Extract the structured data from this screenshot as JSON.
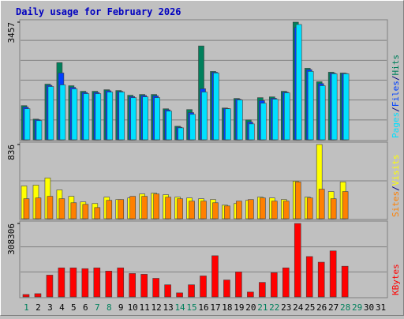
{
  "chart_data": [
    {
      "type": "bar",
      "title": "Daily usage for February 2026",
      "legend_separator": "/",
      "ylim": [
        0,
        3457
      ],
      "yticks": [
        3457
      ],
      "grid": true,
      "series": [
        {
          "name": "Hits",
          "color": "#00805c",
          "values": [
            1004,
            608,
            1635,
            2266,
            1588,
            1425,
            1425,
            1471,
            1448,
            1308,
            1332,
            1332,
            911,
            397,
            888,
            2757,
            2009,
            934,
            1215,
            584,
            1238,
            1261,
            1425,
            3457,
            2102,
            1705,
            1986,
            1962,
            null,
            null,
            null
          ]
        },
        {
          "name": "Files",
          "color": "#0040ff",
          "values": [
            960,
            590,
            1600,
            1962,
            1540,
            1390,
            1390,
            1440,
            1420,
            1270,
            1300,
            1290,
            880,
            370,
            800,
            1500,
            1985,
            920,
            1190,
            520,
            1150,
            1220,
            1400,
            3300,
            2060,
            1650,
            1960,
            1950,
            null,
            null,
            null
          ]
        },
        {
          "name": "Pages",
          "color": "#00e0ff",
          "values": [
            912,
            562,
            1565,
            1612,
            1495,
            1355,
            1355,
            1402,
            1402,
            1238,
            1261,
            1238,
            841,
            350,
            747,
            1402,
            1962,
            911,
            1168,
            467,
            1075,
            1191,
            1378,
            3387,
            2009,
            1589,
            1939,
            1939,
            null,
            null,
            null
          ]
        }
      ]
    },
    {
      "type": "bar",
      "legend_separator": "/",
      "ylim": [
        0,
        836
      ],
      "yticks": [
        836
      ],
      "grid": true,
      "series": [
        {
          "name": "Visits",
          "color": "#ffff00",
          "values": [
            369,
            378,
            459,
            324,
            252,
            189,
            171,
            243,
            216,
            234,
            279,
            288,
            270,
            243,
            234,
            225,
            216,
            153,
            171,
            207,
            243,
            234,
            216,
            423,
            243,
            836,
            306,
            414,
            null,
            null,
            null
          ]
        },
        {
          "name": "Sites",
          "color": "#ff8000",
          "values": [
            225,
            234,
            252,
            225,
            180,
            162,
            126,
            207,
            216,
            252,
            252,
            279,
            243,
            225,
            198,
            198,
            180,
            144,
            198,
            216,
            234,
            198,
            198,
            414,
            234,
            333,
            225,
            306,
            null,
            null,
            null
          ]
        }
      ]
    },
    {
      "type": "bar",
      "ylim": [
        0,
        308306
      ],
      "yticks": [
        308306
      ],
      "grid": true,
      "categories": [
        "1",
        "2",
        "3",
        "4",
        "5",
        "6",
        "7",
        "8",
        "9",
        "10",
        "11",
        "12",
        "13",
        "14",
        "15",
        "16",
        "17",
        "18",
        "19",
        "20",
        "21",
        "22",
        "23",
        "24",
        "25",
        "26",
        "27",
        "28",
        "29",
        "30",
        "31"
      ],
      "category_colors": [
        "#00805c",
        "#000000",
        "#000000",
        "#000000",
        "#000000",
        "#000000",
        "#00805c",
        "#00805c",
        "#000000",
        "#000000",
        "#000000",
        "#000000",
        "#000000",
        "#00805c",
        "#00805c",
        "#000000",
        "#000000",
        "#000000",
        "#000000",
        "#000000",
        "#00805c",
        "#00805c",
        "#000000",
        "#000000",
        "#000000",
        "#000000",
        "#000000",
        "#00805c",
        "#00805c",
        "#000000",
        "#000000"
      ],
      "series": [
        {
          "name": "KBytes",
          "color": "#ff0000",
          "values": [
            10165,
            13553,
            91479,
            121972,
            121972,
            118584,
            121972,
            108419,
            121972,
            98254,
            94866,
            77925,
            50820,
            16941,
            50820,
            88091,
            172788,
            71149,
            105030,
            20329,
            60983,
            101642,
            121972,
            308306,
            169400,
            145684,
            193111,
            128745,
            null,
            null,
            null
          ]
        }
      ]
    }
  ]
}
